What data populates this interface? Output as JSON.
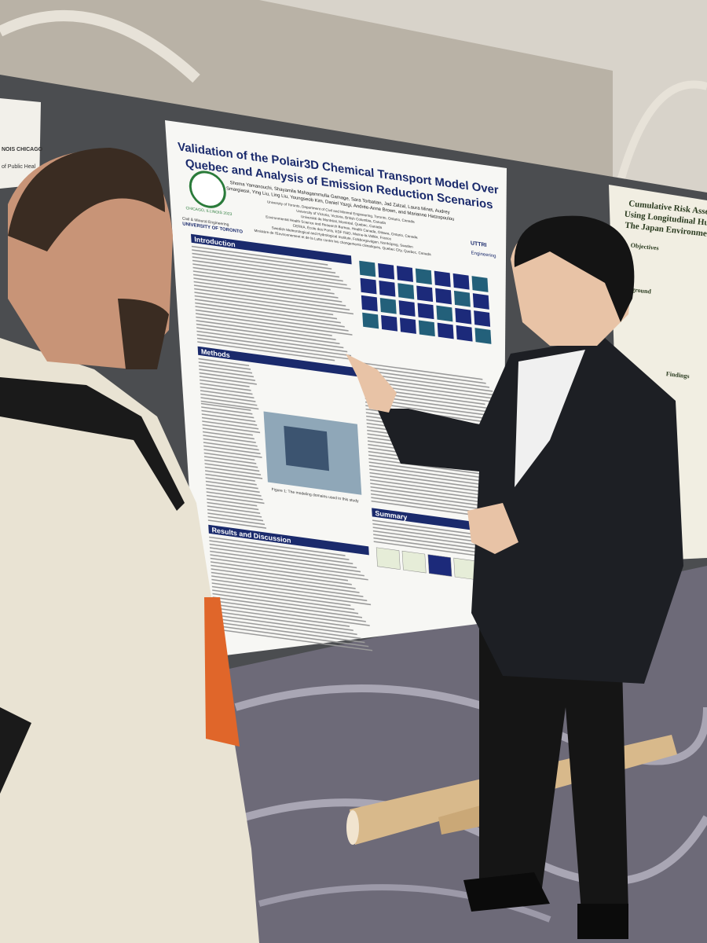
{
  "poster": {
    "title_lines": [
      "Validation of the Polair3D Chemical Transport Model Over",
      "Quebec and Analysis of Emission Reduction Scenarios"
    ],
    "authors_lines": [
      "Shoma Yamanouchi, Shayamila Mahagammulla Gamage, Sara Torbatian, Jad Zalzal, Laura Minet, Audrey",
      "Smargiassi, Ying Liu, Ling Liu, Youngseob Kim, Daniel Yazgi, Andrée-Anne Brown, and Marianne Hatzopoulou"
    ],
    "affiliations": [
      "University of Toronto, Department of Civil and Mineral Engineering, Toronto, Ontario, Canada",
      "University of Victoria, Victoria, British Columbia, Canada",
      "Université de Montréal, Montréal, Quebec, Canada",
      "Environmental Health Science and Research Bureau, Health Canada, Ottawa, Ontario, Canada",
      "CEREA, École des Ponts, EDF R&D, Marne-la-Vallée, France",
      "Swedish Meteorological and Hydrological Institute, Folkborgsvägen, Norrköping, Sweden",
      "Ministère de l'Environnement et de la Lutte contre les changements climatiques, Quebec City, Quebec, Canada"
    ],
    "logos": [
      "Civil & Mineral Engineering",
      "UNIVERSITY OF TORONTO",
      "UTTRI",
      "Engineering",
      "CHICAGO, ILLINOIS 2023"
    ],
    "sections": [
      "Introduction",
      "Methods",
      "Results and Discussion",
      "Summary"
    ],
    "figure_caption": "Figure 1: The modeling domains used in this study"
  },
  "side_poster": {
    "title_lines": [
      "Cumulative Risk Assessment o",
      "Using Longitudinal Human Bio",
      "The Japan Environment and"
    ],
    "sections": [
      "Objectives",
      "Background",
      "Findings"
    ]
  },
  "left_sign": [
    "NOIS CHICAGO",
    "of Public Heal"
  ]
}
